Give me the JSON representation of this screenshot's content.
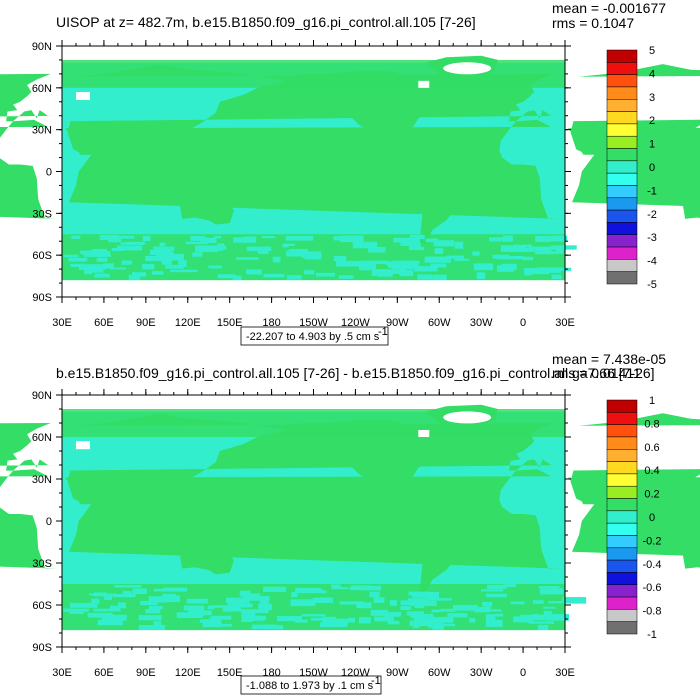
{
  "chart_data": [
    {
      "type": "heatmap",
      "title": "UISOP at z= 482.7m, b.e15.B1850.f09_g16.pi_control.all.105 [7-26]",
      "stats": [
        "mean = -0.001677",
        "rms = 0.1047"
      ],
      "x_ticks": [
        "30E",
        "60E",
        "90E",
        "120E",
        "150E",
        "180",
        "150W",
        "120W",
        "90W",
        "60W",
        "30W",
        "0",
        "30E"
      ],
      "y_ticks": [
        "90N",
        "60N",
        "30N",
        "0",
        "30S",
        "60S",
        "90S"
      ],
      "ylim": [
        -90,
        90
      ],
      "range_text": "-22.207 to 4.903 by .5 cm s",
      "range_sup": "-1",
      "colorbar_levels": [
        "5",
        "4",
        "3",
        "2",
        "1",
        "0",
        "-1",
        "-2",
        "-3",
        "-4",
        "-5"
      ],
      "dominant_color": "#33dd66",
      "secondary_color": "#33eecc"
    },
    {
      "type": "heatmap",
      "title": "b.e15.B1850.f09_g16.pi_control.all.105 [7-26] - b.e15.B1850.f09_g16.pi_control.all.ga7.66 [7-26]",
      "stats": [
        "mean = 7.438e-05",
        "rms = 0.01411"
      ],
      "x_ticks": [
        "30E",
        "60E",
        "90E",
        "120E",
        "150E",
        "180",
        "150W",
        "120W",
        "90W",
        "60W",
        "30W",
        "0",
        "30E"
      ],
      "y_ticks": [
        "90N",
        "60N",
        "30N",
        "0",
        "30S",
        "60S",
        "90S"
      ],
      "ylim": [
        -90,
        90
      ],
      "range_text": "-1.088 to 1.973 by .1 cm s",
      "range_sup": "-1",
      "colorbar_levels": [
        "1",
        "0.8",
        "0.6",
        "0.4",
        "0.2",
        "0",
        "-0.2",
        "-0.4",
        "-0.6",
        "-0.8",
        "-1"
      ],
      "dominant_color": "#33dd66",
      "secondary_color": "#33eecc"
    }
  ],
  "colorbar_colors": [
    "#c00000",
    "#ee1010",
    "#ff5010",
    "#ff8c1a",
    "#ffb030",
    "#ffd820",
    "#ffff33",
    "#99ee22",
    "#33dd66",
    "#33eecc",
    "#33ffee",
    "#33ccff",
    "#1a99ee",
    "#1a55ee",
    "#1111dd",
    "#8822cc",
    "#dd22cc",
    "#c8c8c8",
    "#707070"
  ]
}
